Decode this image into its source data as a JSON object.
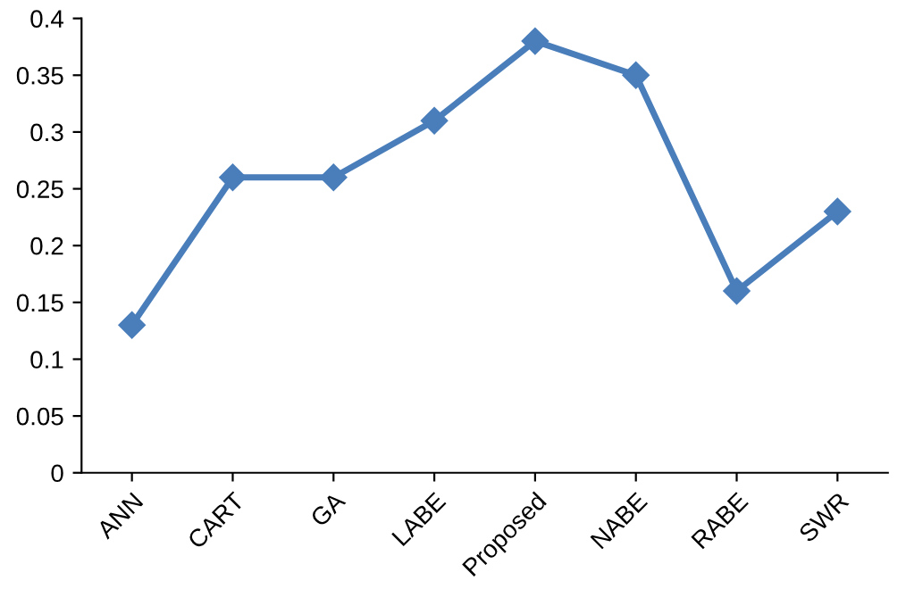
{
  "chart_data": {
    "type": "line",
    "categories": [
      "ANN",
      "CART",
      "GA",
      "LABE",
      "Proposed",
      "NABE",
      "RABE",
      "SWR"
    ],
    "series": [
      {
        "color": "#4a7ebb",
        "values": [
          0.13,
          0.26,
          0.26,
          0.31,
          0.38,
          0.35,
          0.16,
          0.23
        ]
      }
    ],
    "ylim": [
      0,
      0.4
    ],
    "yticks": [
      0,
      0.05,
      0.1,
      0.15,
      0.2,
      0.25,
      0.3,
      0.35,
      0.4
    ],
    "marker": "diamond",
    "line_style": "solid",
    "grid": false,
    "legend": false
  }
}
